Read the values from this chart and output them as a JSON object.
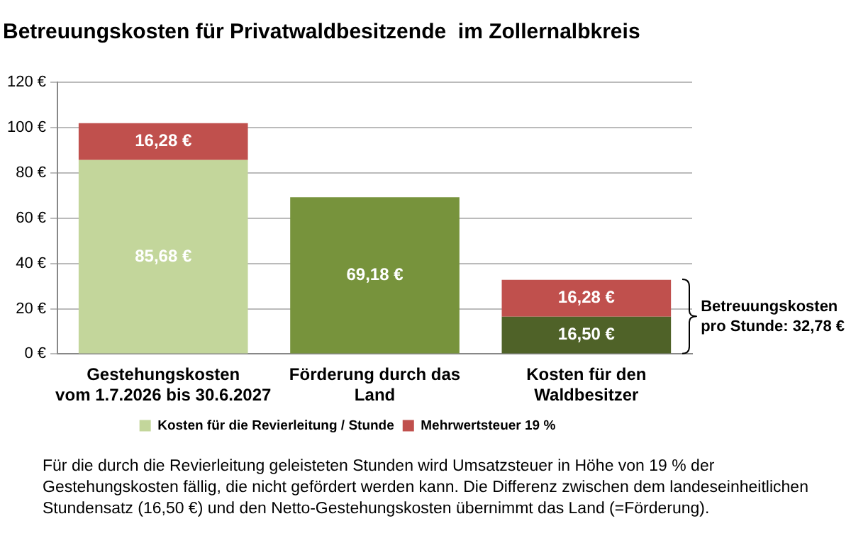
{
  "chart_data": {
    "type": "bar",
    "stacked": true,
    "title": "Betreuungskosten für Privatwaldbesitzende  im Zollernalbkreis",
    "categories": [
      "Gestehungskosten\nvom 1.7.2026 bis 30.6.2027",
      "Förderung durch das\nLand",
      "Kosten für den\nWaldbesitzer"
    ],
    "series": [
      {
        "name": "Kosten für die Revierleitung / Stunde",
        "color": "#c3d69b",
        "colors": [
          "#c3d69b",
          "#77933c",
          "#4f6228"
        ],
        "values": [
          85.68,
          69.18,
          16.5
        ],
        "value_labels": [
          "85,68 €",
          "69,18 €",
          "16,50 €"
        ]
      },
      {
        "name": "Mehrwertsteuer 19 %",
        "color": "#c0504d",
        "values": [
          16.28,
          null,
          16.28
        ],
        "value_labels": [
          "16,28 €",
          null,
          "16,28 €"
        ]
      }
    ],
    "ylim": [
      0,
      120
    ],
    "yticks": [
      {
        "value": 0,
        "label": "0 €"
      },
      {
        "value": 20,
        "label": "20 €"
      },
      {
        "value": 40,
        "label": "40 €"
      },
      {
        "value": 60,
        "label": "60 €"
      },
      {
        "value": 80,
        "label": "80 €"
      },
      {
        "value": 100,
        "label": "100 €"
      },
      {
        "value": 120,
        "label": "120 €"
      }
    ],
    "grid": "y",
    "legend": "bottom",
    "annotations": [
      "Betreuungskosten pro Stunde: 32,78 €",
      "Für die durch die Revierleitung geleisteten Stunden wird Umsatzsteuer  in Höhe von 19 % der Gestehungskosten  fällig, die nicht gefördert werden kann. Die Differenz zwischen dem landeseinheitlichen Stundensatz  (16,50 €) und den Netto-Gestehungskosten  übernimmt das Land (=Förderung)."
    ]
  }
}
